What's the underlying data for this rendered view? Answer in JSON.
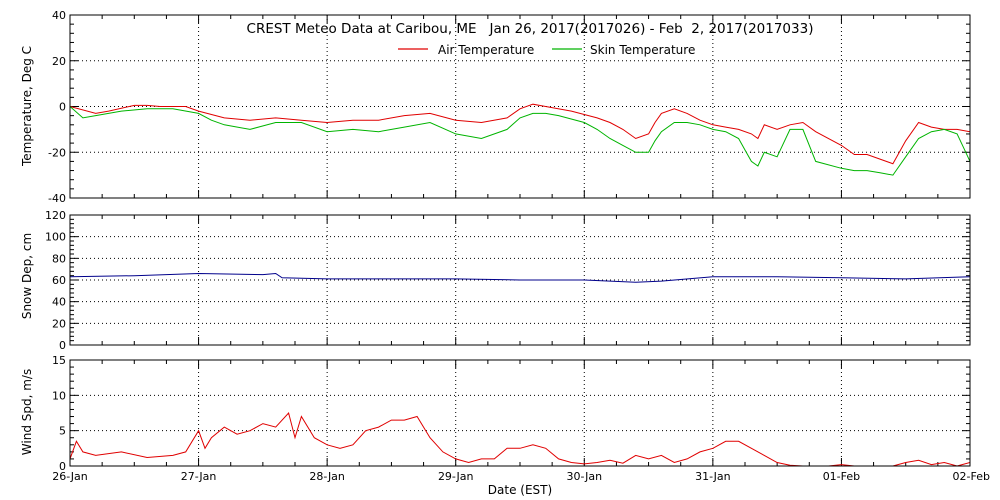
{
  "header": {
    "title": "CREST Meteo Data at Caribou, ME   Jan 26, 2017(2017026) - Feb  2, 2017(2017033)"
  },
  "x_axis": {
    "label": "Date (EST)",
    "tick_labels": [
      "26-Jan",
      "27-Jan",
      "28-Jan",
      "29-Jan",
      "30-Jan",
      "31-Jan",
      "01-Feb",
      "02-Feb"
    ]
  },
  "colors": {
    "air": "#e00000",
    "skin": "#00b400",
    "snow": "#00008b",
    "wind": "#e00000",
    "grid": "#000000"
  },
  "chart_data": [
    {
      "type": "line",
      "ylabel": "Temperature, Deg C",
      "xlim": [
        0,
        7
      ],
      "ylim": [
        -40,
        40
      ],
      "yticks": [
        -40,
        -20,
        0,
        20,
        40
      ],
      "legend": "top-center",
      "series": [
        {
          "name": "Air Temperature",
          "color_key": "air",
          "x": [
            0,
            0.2,
            0.3,
            0.5,
            0.6,
            0.7,
            0.9,
            1.0,
            1.2,
            1.4,
            1.6,
            1.8,
            2.0,
            2.2,
            2.4,
            2.6,
            2.8,
            3.0,
            3.2,
            3.4,
            3.5,
            3.6,
            3.7,
            3.9,
            4.1,
            4.2,
            4.3,
            4.4,
            4.5,
            4.55,
            4.6,
            4.7,
            4.8,
            4.9,
            5.0,
            5.1,
            5.2,
            5.3,
            5.35,
            5.4,
            5.5,
            5.6,
            5.7,
            5.8,
            6.0,
            6.1,
            6.2,
            6.3,
            6.4,
            6.5,
            6.6,
            6.7,
            6.8,
            6.9,
            7.0
          ],
          "y": [
            0,
            -3,
            -2,
            0.5,
            0.5,
            0,
            0,
            -2,
            -5,
            -6,
            -5,
            -6,
            -7,
            -6,
            -6,
            -4,
            -3,
            -6,
            -7,
            -5,
            -1,
            1,
            0,
            -2,
            -5,
            -7,
            -10,
            -14,
            -12,
            -7,
            -3,
            -1,
            -3,
            -6,
            -8,
            -9,
            -10,
            -12,
            -14,
            -8,
            -10,
            -8,
            -7,
            -11,
            -17,
            -21,
            -21,
            -23,
            -25,
            -15,
            -7,
            -9,
            -10,
            -10,
            -11
          ]
        },
        {
          "name": "Skin Temperature",
          "color_key": "skin",
          "x": [
            0,
            0.1,
            0.2,
            0.4,
            0.6,
            0.8,
            1.0,
            1.1,
            1.2,
            1.4,
            1.6,
            1.8,
            2.0,
            2.2,
            2.4,
            2.6,
            2.8,
            3.0,
            3.2,
            3.4,
            3.5,
            3.6,
            3.7,
            3.8,
            4.0,
            4.1,
            4.2,
            4.3,
            4.4,
            4.5,
            4.55,
            4.6,
            4.7,
            4.8,
            4.9,
            5.0,
            5.1,
            5.2,
            5.25,
            5.3,
            5.35,
            5.4,
            5.5,
            5.6,
            5.7,
            5.8,
            6.0,
            6.1,
            6.2,
            6.3,
            6.4,
            6.5,
            6.6,
            6.7,
            6.8,
            6.9,
            6.95,
            7.0
          ],
          "y": [
            0,
            -5,
            -4,
            -2,
            -1,
            -1,
            -3,
            -6,
            -8,
            -10,
            -7,
            -7,
            -11,
            -10,
            -11,
            -9,
            -7,
            -12,
            -14,
            -10,
            -5,
            -3,
            -3,
            -4,
            -7,
            -10,
            -14,
            -17,
            -20,
            -20,
            -15,
            -11,
            -7,
            -7,
            -8,
            -10,
            -11,
            -14,
            -19,
            -24,
            -26,
            -20,
            -22,
            -10,
            -10,
            -24,
            -27,
            -28,
            -28,
            -29,
            -30,
            -22,
            -14,
            -11,
            -10,
            -12,
            -18,
            -24
          ]
        }
      ]
    },
    {
      "type": "line",
      "ylabel": "Snow Dep, cm",
      "xlim": [
        0,
        7
      ],
      "ylim": [
        0,
        120
      ],
      "yticks": [
        0,
        20,
        40,
        60,
        80,
        100,
        120
      ],
      "series": [
        {
          "name": "",
          "color_key": "snow",
          "x": [
            0,
            0.5,
            1.0,
            1.5,
            1.6,
            1.65,
            2.0,
            2.5,
            3.0,
            3.5,
            4.0,
            4.4,
            4.6,
            5.0,
            5.5,
            6.0,
            6.5,
            7.0
          ],
          "y": [
            63,
            64,
            66,
            65,
            66,
            62,
            61,
            61,
            61,
            60,
            60,
            58,
            59,
            63,
            63,
            62,
            61,
            63
          ]
        }
      ]
    },
    {
      "type": "line",
      "ylabel": "Wind Spd, m/s",
      "xlim": [
        0,
        7
      ],
      "ylim": [
        0,
        15
      ],
      "yticks": [
        0,
        5,
        10,
        15
      ],
      "series": [
        {
          "name": "",
          "color_key": "wind",
          "x": [
            0,
            0.05,
            0.1,
            0.2,
            0.4,
            0.6,
            0.8,
            0.9,
            1.0,
            1.05,
            1.1,
            1.2,
            1.3,
            1.4,
            1.5,
            1.6,
            1.7,
            1.75,
            1.8,
            1.9,
            2.0,
            2.1,
            2.2,
            2.3,
            2.4,
            2.5,
            2.6,
            2.7,
            2.8,
            2.9,
            3.0,
            3.1,
            3.2,
            3.3,
            3.4,
            3.5,
            3.6,
            3.7,
            3.8,
            3.9,
            4.0,
            4.1,
            4.2,
            4.3,
            4.4,
            4.5,
            4.6,
            4.7,
            4.8,
            4.9,
            5.0,
            5.1,
            5.2,
            5.3,
            5.4,
            5.5,
            5.6,
            5.7,
            5.8,
            5.9,
            6.0,
            6.1,
            6.2,
            6.3,
            6.4,
            6.5,
            6.6,
            6.7,
            6.8,
            6.9,
            7.0
          ],
          "y": [
            1,
            3.5,
            2,
            1.5,
            2,
            1.2,
            1.5,
            2,
            5,
            2.5,
            4,
            5.5,
            4.5,
            5,
            6,
            5.5,
            7.5,
            4,
            7,
            4,
            3,
            2.5,
            3,
            5,
            5.5,
            6.5,
            6.5,
            7,
            4,
            2,
            1,
            0.5,
            1,
            1,
            2.5,
            2.5,
            3,
            2.5,
            1,
            0.5,
            0.3,
            0.5,
            0.8,
            0.4,
            1.5,
            1,
            1.5,
            0.5,
            1,
            2,
            2.5,
            3.5,
            3.5,
            2.5,
            1.5,
            0.5,
            0.1,
            0,
            0,
            0,
            0.2,
            0,
            0,
            0,
            0,
            0.5,
            0.8,
            0.2,
            0.5,
            0,
            0.5
          ]
        }
      ]
    }
  ]
}
